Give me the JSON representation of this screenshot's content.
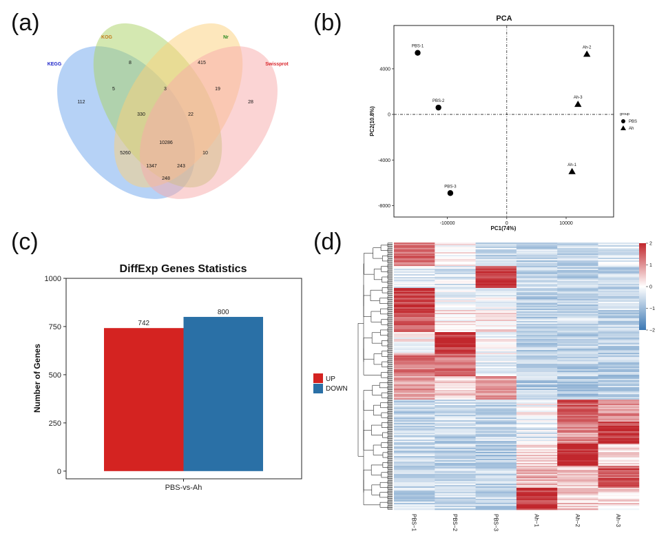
{
  "panel_labels": {
    "a": "(a)",
    "b": "(b)",
    "c": "(c)",
    "d": "(d)"
  },
  "chart_data": [
    {
      "type": "venn",
      "panel": "(a)",
      "sets": [
        {
          "name": "KEGG",
          "color": "#1d24c9",
          "fill": "#6ea6ee"
        },
        {
          "name": "KOG",
          "color": "#c47a1a",
          "fill": "#a9d264"
        },
        {
          "name": "Nr",
          "color": "#2b8a1f",
          "fill": "#fbd07a"
        },
        {
          "name": "Swissprot",
          "color": "#d9252b",
          "fill": "#f7a9a9"
        }
      ],
      "regions": [
        {
          "sets": [
            "KEGG"
          ],
          "value": "112"
        },
        {
          "sets": [
            "KOG"
          ],
          "value": "8"
        },
        {
          "sets": [
            "Nr"
          ],
          "value": "415"
        },
        {
          "sets": [
            "Swissprot"
          ],
          "value": "28"
        },
        {
          "sets": [
            "KEGG",
            "KOG"
          ],
          "value": "5"
        },
        {
          "sets": [
            "KOG",
            "Nr"
          ],
          "value": "3"
        },
        {
          "sets": [
            "Nr",
            "Swissprot"
          ],
          "value": "19"
        },
        {
          "sets": [
            "KEGG",
            "KOG",
            "Nr"
          ],
          "value": "330"
        },
        {
          "sets": [
            "KOG",
            "Nr",
            "Swissprot"
          ],
          "value": "22"
        },
        {
          "sets": [
            "KEGG",
            "KOG",
            "Nr",
            "Swissprot"
          ],
          "value": "10286"
        },
        {
          "sets": [
            "KEGG",
            "Nr"
          ],
          "value": "5260"
        },
        {
          "sets": [
            "KOG",
            "Swissprot"
          ],
          "value": "10"
        },
        {
          "sets": [
            "KEGG",
            "Nr",
            "Swissprot"
          ],
          "value": "1347"
        },
        {
          "sets": [
            "KEGG",
            "KOG",
            "Swissprot"
          ],
          "value": "243"
        },
        {
          "sets": [
            "KEGG",
            "Swissprot"
          ],
          "value": "248"
        }
      ]
    },
    {
      "type": "scatter",
      "panel": "(b)",
      "title": "PCA",
      "xlabel": "PC1(74%)",
      "ylabel": "PC2(10.8%)",
      "xlim": [
        -19000,
        18000
      ],
      "ylim": [
        -9000,
        7800
      ],
      "xticks": [
        -10000,
        0,
        10000
      ],
      "yticks": [
        -8000,
        -4000,
        0,
        4000
      ],
      "xtick_labels": [
        "-10000",
        "0",
        "10000"
      ],
      "ytick_labels": [
        "-8000",
        "-4000",
        "0",
        "4000"
      ],
      "legend_title": "group",
      "legend_position": "right",
      "series": [
        {
          "name": "PBS",
          "marker": "circle",
          "points": [
            {
              "label": "PBS-1",
              "x": -15000,
              "y": 5400
            },
            {
              "label": "PBS-2",
              "x": -11500,
              "y": 600
            },
            {
              "label": "PBS-3",
              "x": -9500,
              "y": -6900
            }
          ]
        },
        {
          "name": "Ah",
          "marker": "triangle",
          "points": [
            {
              "label": "Ah-2",
              "x": 13500,
              "y": 5300
            },
            {
              "label": "Ah-3",
              "x": 12000,
              "y": 900
            },
            {
              "label": "Ah-1",
              "x": 11000,
              "y": -5000
            }
          ]
        }
      ]
    },
    {
      "type": "bar",
      "panel": "(c)",
      "title": "DiffExp Genes Statistics",
      "xlabel": "",
      "ylabel": "Number of Genes",
      "categories": [
        "PBS-vs-Ah"
      ],
      "ylim": [
        -40,
        1000
      ],
      "yticks": [
        0,
        250,
        500,
        750,
        1000
      ],
      "ytick_labels": [
        "0",
        "250",
        "500",
        "750",
        "1000"
      ],
      "legend_position": "right",
      "series": [
        {
          "name": "UP",
          "color": "#d42321",
          "values": [
            742
          ],
          "label": "742"
        },
        {
          "name": "DOWN",
          "color": "#2a70a6",
          "values": [
            800
          ],
          "label": "800"
        }
      ]
    },
    {
      "type": "heatmap",
      "panel": "(d)",
      "columns": [
        "PBS−1",
        "PBS−2",
        "PBS−3",
        "Ah−1",
        "Ah−2",
        "Ah−3"
      ],
      "colorbar": {
        "ticks": [
          "2",
          "1",
          "0",
          "−1",
          "−2"
        ],
        "min": -2,
        "max": 2,
        "high": "#c1272d",
        "mid": "#ffffff",
        "low": "#3b78b4"
      },
      "row_cluster_mean_z": [
        [
          1.4,
          0.1,
          -0.5,
          -0.6,
          -0.6,
          -0.4
        ],
        [
          -0.2,
          -0.3,
          1.8,
          -0.6,
          -0.6,
          -0.6
        ],
        [
          1.8,
          -0.1,
          -0.1,
          -0.7,
          -0.7,
          -0.5
        ],
        [
          1.6,
          0.2,
          0.3,
          -0.6,
          -0.5,
          -0.6
        ],
        [
          0.1,
          1.9,
          0.0,
          -0.7,
          -0.6,
          -0.6
        ],
        [
          1.2,
          1.3,
          -0.2,
          -0.6,
          -0.7,
          -0.7
        ],
        [
          0.9,
          0.4,
          0.9,
          -0.7,
          -0.8,
          -0.7
        ],
        [
          -0.6,
          -0.5,
          -0.7,
          0.0,
          1.6,
          1.0
        ],
        [
          -0.5,
          -0.6,
          -0.6,
          -0.3,
          1.0,
          1.8
        ],
        [
          -0.6,
          -0.6,
          -0.7,
          0.4,
          1.9,
          0.3
        ],
        [
          -0.5,
          -0.5,
          -0.6,
          0.7,
          0.4,
          1.6
        ],
        [
          -0.6,
          -0.5,
          -0.6,
          1.8,
          0.5,
          0.3
        ]
      ]
    }
  ]
}
